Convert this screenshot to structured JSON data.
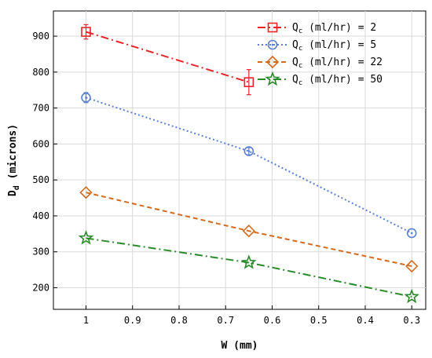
{
  "chart_data": {
    "type": "line",
    "xlabel": "W (mm)",
    "ylabel_main": "D",
    "ylabel_sub": "d",
    "ylabel_rest": " (microns)",
    "x_reversed": true,
    "xlim": [
      0.27,
      1.07
    ],
    "ylim": [
      140,
      970
    ],
    "xticks": [
      1,
      0.9,
      0.8,
      0.7,
      0.6,
      0.5,
      0.4,
      0.3
    ],
    "xtick_labels": [
      "1",
      "0.9",
      "0.8",
      "0.7",
      "0.6",
      "0.5",
      "0.4",
      "0.3"
    ],
    "yticks": [
      200,
      300,
      400,
      500,
      600,
      700,
      800,
      900
    ],
    "ytick_labels": [
      "200",
      "300",
      "400",
      "500",
      "600",
      "700",
      "800",
      "900"
    ],
    "legend_position": "top-right",
    "series": [
      {
        "legend_prefix": "Q",
        "legend_sub": "c",
        "legend_suffix": " (ml/hr) = 2",
        "color": "#e8242a",
        "marker": "square",
        "line_style": "dash-dot",
        "x": [
          1,
          0.65
        ],
        "y": [
          912,
          772
        ],
        "error": [
          20,
          35
        ]
      },
      {
        "legend_prefix": "Q",
        "legend_sub": "c",
        "legend_suffix": " (ml/hr) = 5",
        "color": "#5b7fd4",
        "marker": "circle",
        "line_style": "dotted",
        "x": [
          1,
          0.65,
          0.3
        ],
        "y": [
          729,
          580,
          352
        ],
        "error": [
          14,
          10,
          0
        ]
      },
      {
        "legend_prefix": "Q",
        "legend_sub": "c",
        "legend_suffix": " (ml/hr) = 22",
        "color": "#d46a1e",
        "marker": "diamond",
        "line_style": "dashed",
        "x": [
          1,
          0.65,
          0.3
        ],
        "y": [
          465,
          358,
          260
        ],
        "error": [
          0,
          0,
          0
        ]
      },
      {
        "legend_prefix": "Q",
        "legend_sub": "c",
        "legend_suffix": " (ml/hr) = 50",
        "color": "#2a8a2a",
        "marker": "star",
        "line_style": "dash-dot",
        "x": [
          1,
          0.65,
          0.3
        ],
        "y": [
          338,
          270,
          175
        ],
        "error": [
          0,
          0,
          0
        ]
      }
    ]
  }
}
